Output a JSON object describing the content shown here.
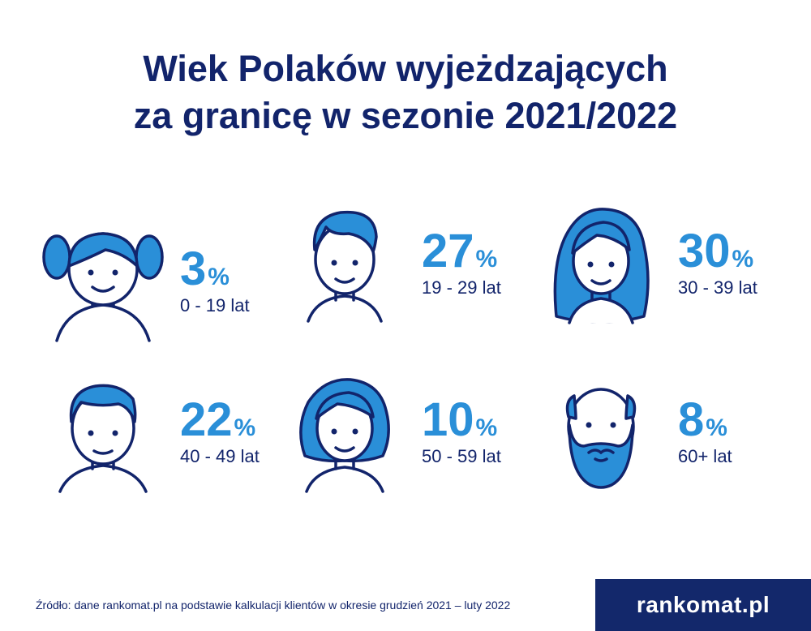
{
  "title": {
    "line1": "Wiek Polaków wyjeżdzających",
    "line2": "za granicę w sezonie 2021/2022"
  },
  "colors": {
    "navy": "#12246b",
    "accent_blue": "#2a8fd8",
    "hair_blue": "#2a8fd8",
    "brand_bg": "#13286b"
  },
  "chart_data": {
    "type": "table",
    "unit": "%",
    "categories": [
      "0 - 19 lat",
      "19 - 29 lat",
      "30 - 39 lat",
      "40 - 49 lat",
      "50 - 59 lat",
      "60+ lat"
    ],
    "values": [
      3,
      27,
      30,
      22,
      10,
      8
    ]
  },
  "groups": [
    {
      "value": "3",
      "unit": "%",
      "label": "0 - 19 lat",
      "icon": "girl-pigtails-icon"
    },
    {
      "value": "27",
      "unit": "%",
      "label": "19 - 29 lat",
      "icon": "young-man-icon"
    },
    {
      "value": "30",
      "unit": "%",
      "label": "30 - 39 lat",
      "icon": "woman-long-hair-icon"
    },
    {
      "value": "22",
      "unit": "%",
      "label": "40 - 49 lat",
      "icon": "man-icon"
    },
    {
      "value": "10",
      "unit": "%",
      "label": "50 - 59 lat",
      "icon": "woman-short-hair-icon"
    },
    {
      "value": "8",
      "unit": "%",
      "label": "60+ lat",
      "icon": "bearded-man-icon"
    }
  ],
  "footer": {
    "source": "Źródło: dane rankomat.pl na podstawie kalkulacji klientów w okresie grudzień 2021 – luty 2022",
    "brand": "rankomat.pl"
  }
}
